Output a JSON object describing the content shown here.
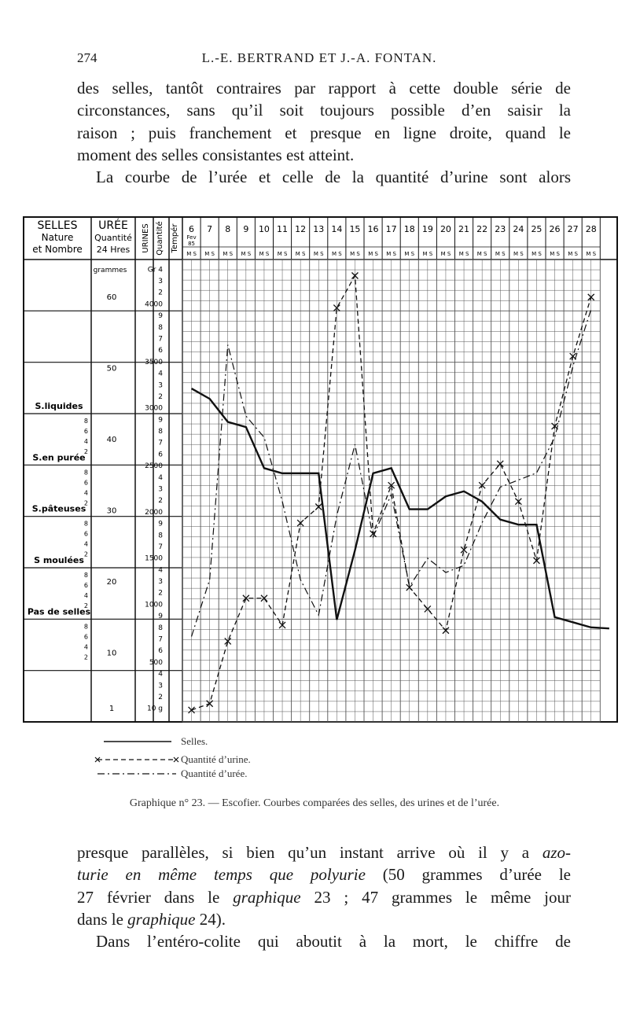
{
  "header": {
    "page_number": "274",
    "running_head": "L.-E. BERTRAND ET J.-A. FONTAN."
  },
  "text_top": {
    "lines": [
      "des selles, tantôt contraires par rapport à cette double série de",
      "circonstances, sans qu’il soit toujours possible d’en saisir la",
      "raison ; puis franchement et presque en ligne droite, quand le",
      "moment des selles consistantes est atteint.",
      "La courbe de l’urée et celle de la quantité d’urine sont alors"
    ]
  },
  "chart_data": {
    "type": "line",
    "header_columns": {
      "selles": [
        "SELLES",
        "Nature",
        "et Nombre"
      ],
      "uree": [
        "URÉE",
        "Quantité",
        "24 Hres"
      ],
      "urines": "URINES",
      "quantite": "Quantité",
      "temper": "Tempér"
    },
    "day_columns": [
      "6",
      "7",
      "8",
      "9",
      "10",
      "11",
      "12",
      "13",
      "14",
      "15",
      "16",
      "17",
      "18",
      "19",
      "20",
      "21",
      "22",
      "23",
      "24",
      "25",
      "26",
      "27",
      "28"
    ],
    "month_label": [
      "Fev",
      "85"
    ],
    "ms_label": "M S",
    "selles_categories": [
      "S.liquides",
      "S.en purée",
      "S.pâteuses",
      "S moulées",
      "Pas de selles"
    ],
    "uree_labels": [
      "grammes",
      "60",
      "50",
      "40",
      "30",
      "20",
      "10",
      "1"
    ],
    "urine_labels": [
      "Gr 4",
      "3",
      "2",
      "4000",
      "9",
      "8",
      "7",
      "6",
      "3500",
      "4",
      "3",
      "2",
      "3000",
      "9",
      "8",
      "7",
      "6",
      "2500",
      "4",
      "3",
      "2",
      "2000",
      "9",
      "8",
      "7",
      "1500",
      "4",
      "3",
      "2",
      "1000",
      "9",
      "8",
      "7",
      "6",
      "500",
      "4",
      "3",
      "2",
      "10 g"
    ],
    "selles_side_labels": [
      "8",
      "6",
      "4",
      "2",
      "8",
      "6",
      "4",
      "2",
      "8",
      "6",
      "4",
      "2",
      "8",
      "6",
      "4",
      "2",
      "8",
      "6",
      "4",
      "2"
    ],
    "series": [
      {
        "name": "Selles.",
        "style": "solid",
        "points": [
          [
            0,
            5.55
          ],
          [
            0.5,
            5.35
          ],
          [
            1,
            4.9
          ],
          [
            1.5,
            4.8
          ],
          [
            2,
            4.0
          ],
          [
            2.5,
            3.9
          ],
          [
            3,
            3.9
          ],
          [
            3.5,
            3.9
          ],
          [
            4,
            1.05
          ],
          [
            4.5,
            2.4
          ],
          [
            5,
            3.9
          ],
          [
            5.5,
            4.0
          ],
          [
            6,
            3.2
          ],
          [
            6.5,
            3.2
          ],
          [
            7,
            3.45
          ],
          [
            7.5,
            3.55
          ],
          [
            8,
            3.35
          ],
          [
            8.5,
            3.0
          ],
          [
            9,
            2.9
          ],
          [
            9.5,
            2.9
          ],
          [
            10,
            1.1
          ],
          [
            10.5,
            1.0
          ],
          [
            11,
            0.9
          ],
          [
            11.5,
            0.88
          ]
        ]
      },
      {
        "name": "Quantité d’urine.",
        "style": "dashed-cross",
        "unit": "cm3",
        "values": [
          110,
          170,
          750,
          1150,
          1150,
          900,
          1850,
          2000,
          3850,
          4150,
          1750,
          2200,
          1250,
          1050,
          850,
          1600,
          2200,
          2400,
          2050,
          1500,
          2750,
          3400,
          3950
        ]
      },
      {
        "name": "Quantité d’urée.",
        "style": "dash-dot",
        "unit": "g",
        "values": [
          12,
          20,
          53,
          43,
          40,
          31,
          20,
          15,
          29,
          39,
          26,
          32,
          19,
          23,
          21,
          22,
          28,
          33,
          34,
          35,
          40,
          50,
          58
        ]
      }
    ],
    "legend": {
      "placement": "bottom",
      "entries": [
        "Selles.",
        "Quantité d’urine.",
        "Quantité d’urée."
      ]
    },
    "title": "Graphique n° 23. — Escofier. Courbes comparées des selles, des urines et de l’urée."
  },
  "text_bottom": {
    "lines": [
      {
        "parts": [
          {
            "t": "presque parallèles, si bien qu’un instant arrive où il y a "
          },
          {
            "t": "azo-",
            "i": true
          }
        ]
      },
      {
        "parts": [
          {
            "t": "turie en même temps que polyurie",
            "i": true
          },
          {
            "t": " (50 grammes d’urée le"
          }
        ]
      },
      {
        "parts": [
          {
            "t": "27 février dans le "
          },
          {
            "t": "graphique",
            "i": true
          },
          {
            "t": " 23 ; 47 grammes le même jour"
          }
        ]
      },
      {
        "parts": [
          {
            "t": "dans le "
          },
          {
            "t": "graphique",
            "i": true
          },
          {
            "t": " 24)."
          }
        ]
      },
      {
        "parts": [
          {
            "t": "Dans l’entéro-colite qui aboutit à la mort, le chiffre de"
          }
        ]
      }
    ]
  }
}
